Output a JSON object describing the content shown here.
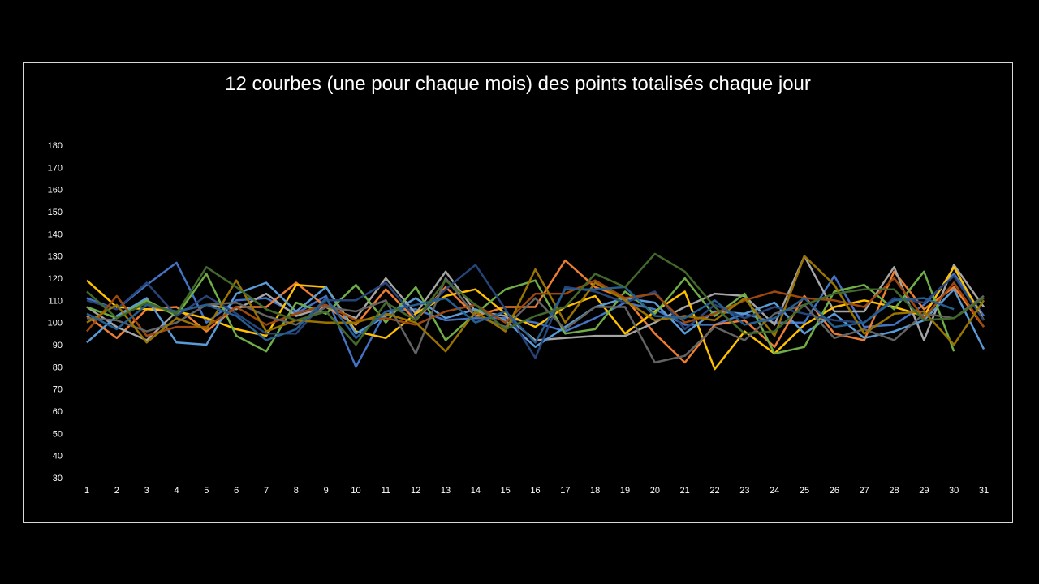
{
  "chart_data": {
    "type": "line",
    "title": "12 courbes (une pour chaque mois) des points totalisés chaque jour",
    "xlabel": "",
    "ylabel": "",
    "categories": [
      1,
      2,
      3,
      4,
      5,
      6,
      7,
      8,
      9,
      10,
      11,
      12,
      13,
      14,
      15,
      16,
      17,
      18,
      19,
      20,
      21,
      22,
      23,
      24,
      25,
      26,
      27,
      28,
      29,
      30,
      31
    ],
    "ylim": [
      30,
      180
    ],
    "yticks": [
      30,
      40,
      50,
      60,
      70,
      80,
      90,
      100,
      110,
      120,
      130,
      140,
      150,
      160,
      170,
      180
    ],
    "grid": false,
    "legend": "none",
    "series": [
      {
        "color": "#4472c4",
        "values": [
          111,
          106,
          117,
          127,
          100,
          110,
          111,
          104,
          112,
          80,
          105,
          106,
          101,
          102,
          102,
          100,
          96,
          102,
          109,
          106,
          99,
          99,
          104,
          100,
          100,
          121,
          98,
          99,
          108,
          122,
          103
        ]
      },
      {
        "color": "#ed7d31",
        "values": [
          103,
          93,
          106,
          107,
          96,
          107,
          107,
          118,
          107,
          99,
          115,
          101,
          116,
          103,
          107,
          107,
          128,
          116,
          111,
          95,
          82,
          99,
          101,
          89,
          112,
          95,
          92,
          123,
          106,
          116,
          98
        ]
      },
      {
        "color": "#a5a5a5",
        "values": [
          107,
          98,
          92,
          105,
          108,
          106,
          113,
          103,
          107,
          102,
          120,
          104,
          123,
          105,
          103,
          92,
          93,
          94,
          94,
          100,
          107,
          113,
          112,
          99,
          130,
          105,
          105,
          125,
          92,
          126,
          107
        ]
      },
      {
        "color": "#ffc000",
        "values": [
          119,
          107,
          106,
          105,
          102,
          97,
          94,
          117,
          116,
          96,
          93,
          104,
          112,
          115,
          104,
          98,
          107,
          112,
          95,
          105,
          114,
          79,
          96,
          86,
          99,
          107,
          110,
          107,
          103,
          125,
          101
        ]
      },
      {
        "color": "#5b9bd5",
        "values": [
          91,
          103,
          111,
          91,
          90,
          113,
          118,
          105,
          116,
          95,
          103,
          111,
          102,
          106,
          101,
          89,
          98,
          107,
          111,
          109,
          95,
          105,
          104,
          109,
          95,
          104,
          93,
          96,
          101,
          115,
          88
        ]
      },
      {
        "color": "#70ad47",
        "values": [
          107,
          102,
          110,
          103,
          122,
          94,
          87,
          109,
          104,
          117,
          100,
          116,
          92,
          104,
          115,
          119,
          95,
          97,
          114,
          104,
          120,
          103,
          113,
          86,
          89,
          114,
          117,
          106,
          123,
          87,
          null
        ]
      },
      {
        "color": "#264478",
        "values": [
          110,
          106,
          118,
          103,
          112,
          104,
          95,
          95,
          110,
          110,
          118,
          102,
          115,
          126,
          106,
          84,
          116,
          114,
          109,
          114,
          97,
          108,
          102,
          107,
          104,
          101,
          100,
          111,
          109,
          121,
          101
        ]
      },
      {
        "color": "#9e480e",
        "values": [
          96,
          112,
          94,
          98,
          98,
          107,
          99,
          104,
          108,
          101,
          102,
          99,
          105,
          108,
          100,
          113,
          113,
          119,
          111,
          113,
          100,
          104,
          110,
          114,
          111,
          110,
          107,
          120,
          102,
          118,
          98
        ]
      },
      {
        "color": "#636363",
        "values": [
          102,
          101,
          96,
          100,
          108,
          109,
          103,
          99,
          107,
          105,
          110,
          86,
          120,
          103,
          98,
          111,
          97,
          107,
          107,
          82,
          85,
          98,
          92,
          104,
          108,
          93,
          97,
          92,
          104,
          102,
          112
        ]
      },
      {
        "color": "#997300",
        "values": [
          100,
          108,
          91,
          102,
          97,
          119,
          96,
          101,
          100,
          100,
          104,
          100,
          87,
          105,
          96,
          124,
          100,
          118,
          110,
          101,
          103,
          101,
          111,
          94,
          130,
          117,
          95,
          104,
          105,
          90,
          110
        ]
      },
      {
        "color": "#255e91",
        "values": [
          104,
          97,
          108,
          105,
          108,
          103,
          92,
          97,
          111,
          93,
          105,
          108,
          111,
          100,
          105,
          91,
          115,
          115,
          116,
          103,
          102,
          110,
          99,
          102,
          111,
          98,
          100,
          110,
          111,
          106,
          null
        ]
      },
      {
        "color": "#43682b",
        "values": [
          114,
          102,
          109,
          104,
          125,
          116,
          106,
          101,
          105,
          90,
          109,
          101,
          119,
          108,
          97,
          103,
          107,
          122,
          116,
          131,
          123,
          107,
          95,
          96,
          108,
          113,
          115,
          115,
          101,
          102,
          111
        ]
      }
    ]
  }
}
